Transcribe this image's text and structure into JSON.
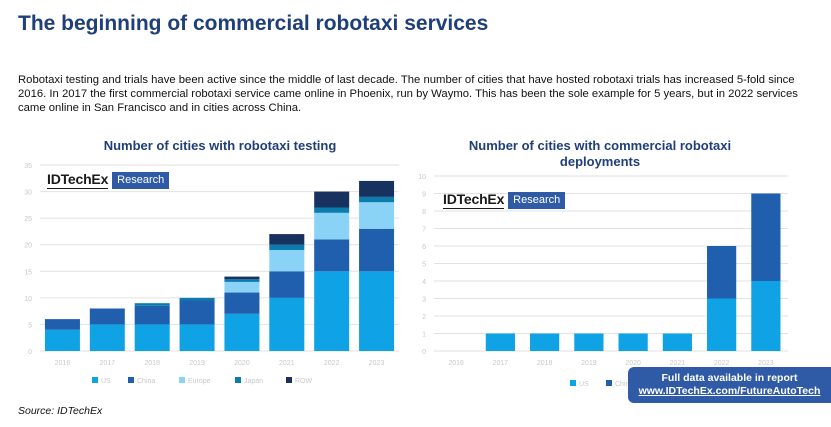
{
  "page": {
    "title": "The beginning of commercial robotaxi services",
    "intro": "Robotaxi testing and trials have been active since the middle of last decade. The number of cities that have hosted robotaxi trials has increased 5-fold since 2016. In 2017 the first commercial robotaxi service came online in Phoenix, run by Waymo. This has been the sole example for 5 years, but in 2022 services came online in San Francisco and in cities across China.",
    "logo_brand": "IDTechEx",
    "logo_tag": "Research",
    "banner_line1": "Full data available in report",
    "banner_line2": "www.IDTechEx.com/FutureAutoTech",
    "source": "Source: IDTechEx"
  },
  "chart_data": [
    {
      "type": "bar",
      "stacked": true,
      "title": "Number of cities with robotaxi testing",
      "categories": [
        "2016",
        "2017",
        "2018",
        "2019",
        "2020",
        "2021",
        "2022",
        "2023"
      ],
      "ylim": [
        0,
        35
      ],
      "yticks": [
        0,
        5,
        10,
        15,
        20,
        25,
        30,
        35
      ],
      "grid": true,
      "legend_position": "bottom",
      "series": [
        {
          "name": "US",
          "color": "#0fa3e6",
          "values": [
            4,
            5,
            5,
            5,
            7,
            10,
            15,
            15
          ]
        },
        {
          "name": "China",
          "color": "#1f5fae",
          "values": [
            2,
            3,
            3.5,
            4.5,
            4,
            5,
            6,
            8
          ]
        },
        {
          "name": "Europe",
          "color": "#8ad3f7",
          "values": [
            0,
            0,
            0,
            0,
            2,
            4,
            5,
            5
          ]
        },
        {
          "name": "Japan",
          "color": "#0b7cad",
          "values": [
            0,
            0,
            0.5,
            0.5,
            0.5,
            1,
            1,
            1
          ]
        },
        {
          "name": "ROW",
          "color": "#17325e",
          "values": [
            0,
            0,
            0,
            0,
            0.5,
            2,
            3,
            3
          ]
        }
      ]
    },
    {
      "type": "bar",
      "stacked": true,
      "title": "Number of cities with commercial robotaxi deployments",
      "categories": [
        "2016",
        "2017",
        "2018",
        "2019",
        "2020",
        "2021",
        "2022",
        "2023"
      ],
      "ylim": [
        0,
        10
      ],
      "yticks": [
        0,
        1,
        2,
        3,
        4,
        5,
        6,
        7,
        8,
        9,
        10
      ],
      "grid": true,
      "legend_position": "bottom",
      "series": [
        {
          "name": "US",
          "color": "#0fa3e6",
          "values": [
            0,
            1,
            1,
            1,
            1,
            1,
            3,
            4
          ]
        },
        {
          "name": "China",
          "color": "#1f5fae",
          "values": [
            0,
            0,
            0,
            0,
            0,
            0,
            3,
            5
          ]
        }
      ]
    }
  ]
}
